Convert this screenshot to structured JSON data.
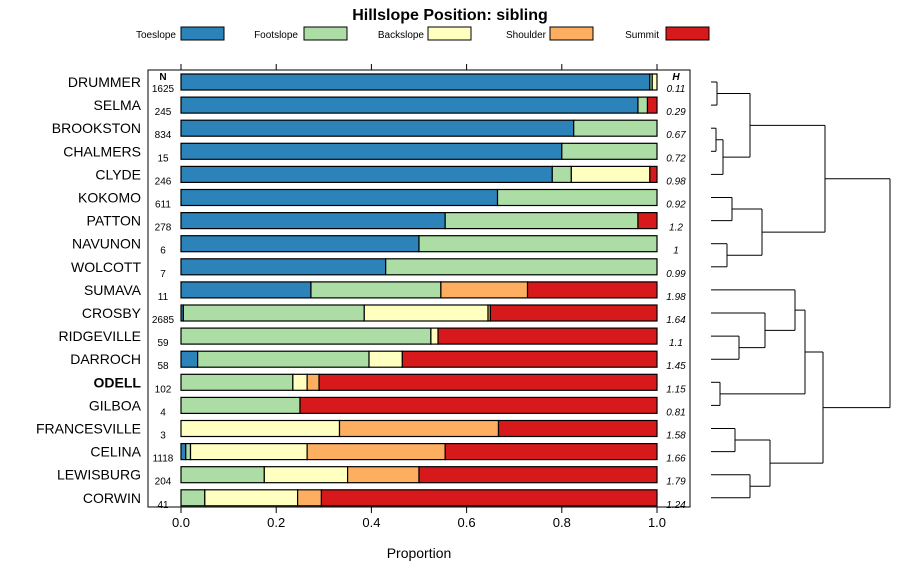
{
  "chart_data": {
    "type": "bar",
    "orientation": "horizontal-stacked",
    "title": "Hillslope Position: sibling",
    "xlabel": "Proportion",
    "ylabel": "",
    "xlim": [
      0,
      1
    ],
    "x_ticks": [
      "0.0",
      "0.2",
      "0.4",
      "0.6",
      "0.8",
      "1.0"
    ],
    "n_header": "N",
    "h_header": "H",
    "legend_position": "top",
    "series": [
      {
        "name": "Toeslope",
        "color": "#2b83ba"
      },
      {
        "name": "Footslope",
        "color": "#abdda4"
      },
      {
        "name": "Backslope",
        "color": "#ffffbf"
      },
      {
        "name": "Shoulder",
        "color": "#fdae61"
      },
      {
        "name": "Summit",
        "color": "#d7191c"
      }
    ],
    "rows": [
      {
        "label": "DRUMMER",
        "n": "1625",
        "h": "0.11",
        "bold": false,
        "values": [
          0.985,
          0.005,
          0.01,
          0,
          0
        ]
      },
      {
        "label": "SELMA",
        "n": "245",
        "h": "0.29",
        "bold": false,
        "values": [
          0.96,
          0.02,
          0,
          0,
          0.02
        ]
      },
      {
        "label": "BROOKSTON",
        "n": "834",
        "h": "0.67",
        "bold": false,
        "values": [
          0.825,
          0.175,
          0,
          0,
          0
        ]
      },
      {
        "label": "CHALMERS",
        "n": "15",
        "h": "0.72",
        "bold": false,
        "values": [
          0.8,
          0.2,
          0,
          0,
          0
        ]
      },
      {
        "label": "CLYDE",
        "n": "246",
        "h": "0.98",
        "bold": false,
        "values": [
          0.78,
          0.04,
          0.165,
          0,
          0.015
        ]
      },
      {
        "label": "KOKOMO",
        "n": "611",
        "h": "0.92",
        "bold": false,
        "values": [
          0.665,
          0.335,
          0,
          0,
          0
        ]
      },
      {
        "label": "PATTON",
        "n": "278",
        "h": "1.2",
        "bold": false,
        "values": [
          0.555,
          0.405,
          0,
          0,
          0.04
        ]
      },
      {
        "label": "NAVUNON",
        "n": "6",
        "h": "1",
        "bold": false,
        "values": [
          0.5,
          0.5,
          0,
          0,
          0
        ]
      },
      {
        "label": "WOLCOTT",
        "n": "7",
        "h": "0.99",
        "bold": false,
        "values": [
          0.43,
          0.57,
          0,
          0,
          0
        ]
      },
      {
        "label": "SUMAVA",
        "n": "11",
        "h": "1.98",
        "bold": false,
        "values": [
          0.273,
          0.273,
          0,
          0.182,
          0.272
        ]
      },
      {
        "label": "CROSBY",
        "n": "2685",
        "h": "1.64",
        "bold": false,
        "values": [
          0.005,
          0.38,
          0.26,
          0.005,
          0.35
        ]
      },
      {
        "label": "RIDGEVILLE",
        "n": "59",
        "h": "1.1",
        "bold": false,
        "values": [
          0,
          0.525,
          0.015,
          0,
          0.46
        ]
      },
      {
        "label": "DARROCH",
        "n": "58",
        "h": "1.45",
        "bold": false,
        "values": [
          0.035,
          0.36,
          0.07,
          0,
          0.535
        ]
      },
      {
        "label": "ODELL",
        "n": "102",
        "h": "1.15",
        "bold": true,
        "values": [
          0,
          0.235,
          0.03,
          0.025,
          0.71
        ]
      },
      {
        "label": "GILBOA",
        "n": "4",
        "h": "0.81",
        "bold": false,
        "values": [
          0,
          0.25,
          0,
          0,
          0.75
        ]
      },
      {
        "label": "FRANCESVILLE",
        "n": "3",
        "h": "1.58",
        "bold": false,
        "values": [
          0,
          0,
          0.333,
          0.334,
          0.333
        ]
      },
      {
        "label": "CELINA",
        "n": "1118",
        "h": "1.66",
        "bold": false,
        "values": [
          0.01,
          0.01,
          0.245,
          0.29,
          0.445
        ]
      },
      {
        "label": "LEWISBURG",
        "n": "204",
        "h": "1.79",
        "bold": false,
        "values": [
          0,
          0.175,
          0.175,
          0.15,
          0.5
        ]
      },
      {
        "label": "CORWIN",
        "n": "41",
        "h": "1.24",
        "bold": false,
        "values": [
          0,
          0.05,
          0.195,
          0.05,
          0.705
        ]
      }
    ]
  }
}
